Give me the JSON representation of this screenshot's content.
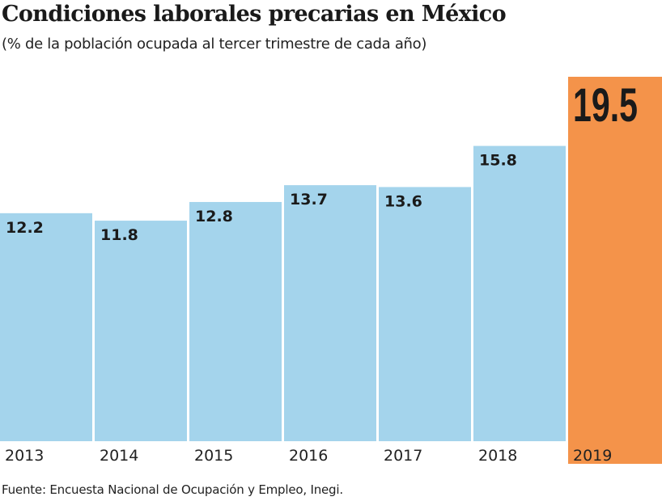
{
  "chart_data": {
    "type": "bar",
    "title": "Condiciones laborales precarias en México",
    "subtitle": "(% de la población ocupada al tercer trimestre de cada año)",
    "categories": [
      "2013",
      "2014",
      "2015",
      "2016",
      "2017",
      "2018",
      "2019"
    ],
    "values": [
      12.2,
      11.8,
      12.8,
      13.7,
      13.6,
      15.8,
      19.5
    ],
    "data_labels": [
      "12.2",
      "11.8",
      "12.8",
      "13.7",
      "13.6",
      "15.8",
      "19.5"
    ],
    "ylim": [
      0,
      19.5
    ],
    "grid": false,
    "colors": {
      "default": "#a4d4ec",
      "highlight": "#f4934a",
      "label": "#1a1a1a"
    },
    "highlight_index": 6,
    "source": "Fuente: Encuesta Nacional de Ocupación y Empleo, Inegi."
  }
}
